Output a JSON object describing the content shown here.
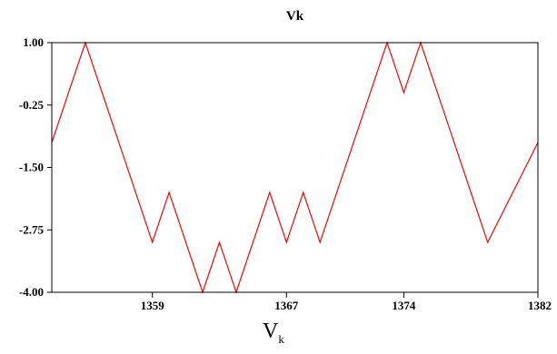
{
  "chart_data": {
    "type": "line",
    "title": "Vk",
    "xlabel": "V",
    "xlabel_subscript": "k",
    "ylabel": "",
    "xlim": [
      1353,
      1382
    ],
    "ylim": [
      -4.0,
      1.0
    ],
    "x_ticks": [
      1359,
      1367,
      1374,
      1382
    ],
    "y_ticks": [
      1.0,
      -0.25,
      -1.5,
      -2.75,
      -4.0
    ],
    "x_tick_labels": [
      "1359",
      "1367",
      "1374",
      "1382"
    ],
    "y_tick_labels": [
      "1.00",
      "-0.25",
      "-1.50",
      "-2.75",
      "-4.00"
    ],
    "grid": false,
    "series": [
      {
        "color": "#ff0000",
        "x": [
          1353,
          1355,
          1359,
          1360,
          1362,
          1363,
          1364,
          1366,
          1367,
          1368,
          1369,
          1373,
          1374,
          1375,
          1379,
          1382
        ],
        "y": [
          -1.0,
          1.0,
          -3.0,
          -2.0,
          -4.0,
          -3.0,
          -4.0,
          -2.0,
          -3.0,
          -2.0,
          -3.0,
          1.0,
          0.0,
          1.0,
          -3.0,
          -1.0
        ]
      }
    ]
  }
}
